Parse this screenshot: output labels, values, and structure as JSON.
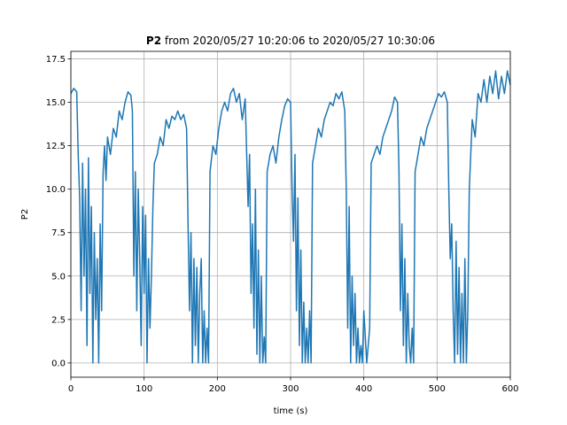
{
  "chart_data": {
    "type": "line",
    "title_parts": [
      "P2",
      "from 2020/05/27 10:20:06 to 2020/05/27 10:30:06"
    ],
    "x_label": "time (s)",
    "y_label": "P2",
    "grid": true,
    "xlim": [
      0,
      600
    ],
    "xticks": [
      0,
      100,
      200,
      300,
      400,
      500,
      600
    ],
    "ylim": [
      -0.82,
      17.93
    ],
    "yticks": [
      {
        "value": 0,
        "label": "0.0"
      },
      2.5,
      {
        "value": 5,
        "label": "5.0"
      },
      7.5,
      {
        "value": 10,
        "label": "10.0"
      },
      12.5,
      {
        "value": 15,
        "label": "15.0"
      },
      17.5
    ],
    "x": [
      0,
      4,
      8,
      10,
      12,
      14,
      16,
      18,
      20,
      22,
      24,
      26,
      28,
      30,
      32,
      34,
      36,
      38,
      40,
      42,
      44,
      46,
      48,
      50,
      54,
      58,
      62,
      66,
      70,
      74,
      78,
      82,
      84,
      86,
      88,
      90,
      92,
      94,
      96,
      98,
      100,
      102,
      104,
      106,
      108,
      110,
      112,
      114,
      118,
      122,
      126,
      130,
      134,
      138,
      142,
      146,
      150,
      154,
      158,
      160,
      162,
      164,
      166,
      168,
      170,
      172,
      174,
      176,
      178,
      180,
      182,
      184,
      186,
      188,
      190,
      194,
      198,
      202,
      206,
      210,
      214,
      218,
      222,
      226,
      230,
      234,
      238,
      242,
      244,
      246,
      248,
      250,
      252,
      254,
      256,
      258,
      260,
      262,
      264,
      266,
      268,
      272,
      276,
      280,
      284,
      288,
      292,
      296,
      300,
      302,
      304,
      306,
      308,
      310,
      312,
      314,
      316,
      318,
      320,
      322,
      324,
      326,
      328,
      330,
      334,
      338,
      342,
      346,
      350,
      354,
      358,
      362,
      366,
      370,
      374,
      376,
      378,
      380,
      382,
      384,
      386,
      388,
      390,
      392,
      394,
      396,
      398,
      400,
      404,
      408,
      410,
      414,
      418,
      422,
      426,
      430,
      434,
      438,
      442,
      446,
      448,
      450,
      452,
      454,
      456,
      458,
      460,
      462,
      464,
      466,
      468,
      470,
      474,
      478,
      482,
      486,
      490,
      494,
      498,
      502,
      506,
      510,
      514,
      516,
      518,
      520,
      522,
      524,
      526,
      528,
      530,
      532,
      534,
      536,
      538,
      540,
      542,
      544,
      548,
      552,
      556,
      560,
      564,
      568,
      572,
      576,
      580,
      584,
      588,
      592,
      596,
      600
    ],
    "series": [
      {
        "name": "P2",
        "color": "#1f77b4",
        "values": [
          15.5,
          15.8,
          15.6,
          12.0,
          9.5,
          3.0,
          11.5,
          5.0,
          10.0,
          1.0,
          11.8,
          4.0,
          9.0,
          0.0,
          7.5,
          2.5,
          6.0,
          0.0,
          8.0,
          3.0,
          11.0,
          12.5,
          10.5,
          13.0,
          12.0,
          13.5,
          13.0,
          14.5,
          14.0,
          15.0,
          15.6,
          15.4,
          14.5,
          5.0,
          11.0,
          3.0,
          10.0,
          6.0,
          1.0,
          9.0,
          4.0,
          8.5,
          0.0,
          6.0,
          2.0,
          5.0,
          9.0,
          11.5,
          12.0,
          13.0,
          12.5,
          14.0,
          13.5,
          14.2,
          14.0,
          14.5,
          14.0,
          14.3,
          13.5,
          8.0,
          3.0,
          7.5,
          0.0,
          6.0,
          1.0,
          5.5,
          0.0,
          4.0,
          6.0,
          0.0,
          3.0,
          0.0,
          2.0,
          0.0,
          11.0,
          12.5,
          12.0,
          13.5,
          14.5,
          15.0,
          14.5,
          15.5,
          15.8,
          15.0,
          15.5,
          14.0,
          15.2,
          9.0,
          12.0,
          4.0,
          8.0,
          2.0,
          10.0,
          0.5,
          6.5,
          0.0,
          5.0,
          0.0,
          1.5,
          0.0,
          11.0,
          12.0,
          12.5,
          11.5,
          13.0,
          14.0,
          14.8,
          15.2,
          15.0,
          10.0,
          7.0,
          12.0,
          3.0,
          9.5,
          1.0,
          6.5,
          0.0,
          3.5,
          0.0,
          2.0,
          0.0,
          3.0,
          0.0,
          11.5,
          12.5,
          13.5,
          13.0,
          14.0,
          14.5,
          15.0,
          14.8,
          15.5,
          15.2,
          15.6,
          14.5,
          10.0,
          2.0,
          9.0,
          0.0,
          5.0,
          1.0,
          4.0,
          0.0,
          2.0,
          0.0,
          1.0,
          0.0,
          3.0,
          0.0,
          2.0,
          11.5,
          12.0,
          12.5,
          12.0,
          13.0,
          13.5,
          14.0,
          14.5,
          15.3,
          15.0,
          11.0,
          3.0,
          8.0,
          1.0,
          6.0,
          0.0,
          4.0,
          1.0,
          0.0,
          2.0,
          0.0,
          11.0,
          12.0,
          13.0,
          12.5,
          13.5,
          14.0,
          14.5,
          15.0,
          15.5,
          15.3,
          15.6,
          15.0,
          10.0,
          6.0,
          8.0,
          3.0,
          0.0,
          7.0,
          0.5,
          5.5,
          0.0,
          4.0,
          0.0,
          6.0,
          0.0,
          3.0,
          10.0,
          14.0,
          13.0,
          15.5,
          15.0,
          16.3,
          15.0,
          16.5,
          15.5,
          16.8,
          15.2,
          16.5,
          15.5,
          16.8,
          16.0
        ]
      }
    ]
  }
}
